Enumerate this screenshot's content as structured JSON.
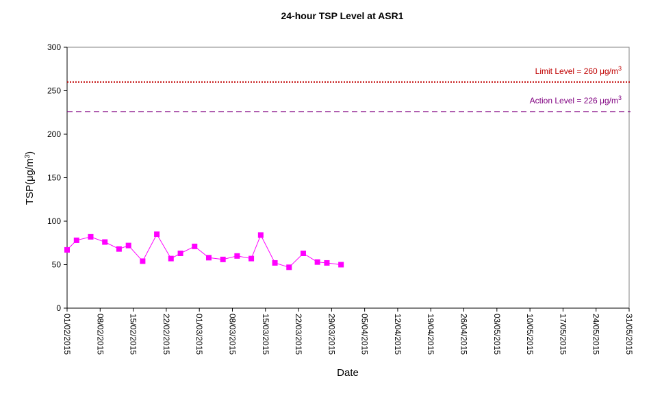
{
  "chart_data": {
    "type": "line",
    "title": "24-hour TSP Level at ASR1",
    "xlabel": "Date",
    "ylabel": "TSP(μg/m³)",
    "ylabel_base": "TSP(",
    "ylabel_unit": "μg/m",
    "ylabel_sup": "3",
    "ylabel_close": ")",
    "ylim": [
      0,
      300
    ],
    "yticks": [
      0,
      50,
      100,
      150,
      200,
      250,
      300
    ],
    "xlim": [
      "01/02/2015",
      "31/05/2015"
    ],
    "xticks": [
      "01/02/2015",
      "08/02/2015",
      "15/02/2015",
      "22/02/2015",
      "01/03/2015",
      "08/03/2015",
      "15/03/2015",
      "22/03/2015",
      "29/03/2015",
      "05/04/2015",
      "12/04/2015",
      "19/04/2015",
      "26/04/2015",
      "03/05/2015",
      "10/05/2015",
      "17/05/2015",
      "24/05/2015",
      "31/05/2015"
    ],
    "grid": false,
    "series": [
      {
        "color": "#ff00ff",
        "marker": "square",
        "points": [
          {
            "x": "01/02/2015",
            "y": 67
          },
          {
            "x": "03/02/2015",
            "y": 78
          },
          {
            "x": "06/02/2015",
            "y": 82
          },
          {
            "x": "09/02/2015",
            "y": 76
          },
          {
            "x": "12/02/2015",
            "y": 68
          },
          {
            "x": "14/02/2015",
            "y": 72
          },
          {
            "x": "17/02/2015",
            "y": 54
          },
          {
            "x": "20/02/2015",
            "y": 85
          },
          {
            "x": "23/02/2015",
            "y": 57
          },
          {
            "x": "25/02/2015",
            "y": 63
          },
          {
            "x": "28/02/2015",
            "y": 71
          },
          {
            "x": "03/03/2015",
            "y": 58
          },
          {
            "x": "06/03/2015",
            "y": 56
          },
          {
            "x": "09/03/2015",
            "y": 60
          },
          {
            "x": "12/03/2015",
            "y": 57
          },
          {
            "x": "14/03/2015",
            "y": 84
          },
          {
            "x": "17/03/2015",
            "y": 52
          },
          {
            "x": "20/03/2015",
            "y": 47
          },
          {
            "x": "23/03/2015",
            "y": 63
          },
          {
            "x": "26/03/2015",
            "y": 53
          },
          {
            "x": "28/03/2015",
            "y": 52
          },
          {
            "x": "31/03/2015",
            "y": 50
          }
        ]
      }
    ],
    "reference_lines": [
      {
        "name": "Limit Level",
        "value": 260,
        "label_prefix": "Limit Level  = 260 ",
        "label_unit": "μg/m",
        "label_sup": "3",
        "color": "#c00000",
        "style": "dotted"
      },
      {
        "name": "Action Level",
        "value": 226,
        "label_prefix": "Action Level  = 226 ",
        "label_unit": "μg/m",
        "label_sup": "3",
        "color": "#800080",
        "style": "dashed"
      }
    ]
  }
}
